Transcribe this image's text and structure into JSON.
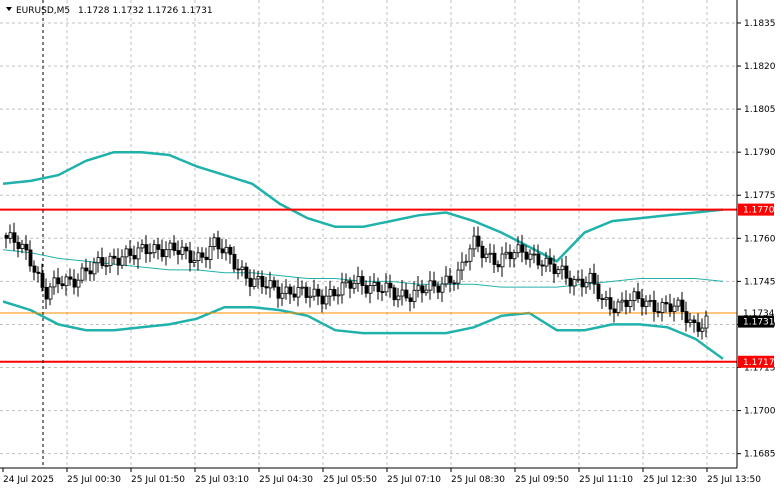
{
  "window": {
    "symbol_label": "EURUSD,M5",
    "ohlc_text": "1.1728 1.1732 1.1726 1.1731",
    "menu_icon": "triangle-down-icon"
  },
  "chart_data": {
    "type": "candlestick",
    "title": "EURUSD,M5",
    "ylim": [
      1.168,
      1.1843
    ],
    "y_ticks": [
      "1.1835",
      "1.1820",
      "1.1805",
      "1.1790",
      "1.1775",
      "1.1760",
      "1.1745",
      "1.1730",
      "1.1715",
      "1.1700",
      "1.1685"
    ],
    "x_ticks": [
      "24 Jul 2025",
      "25 Jul 00:30",
      "25 Jul 01:50",
      "25 Jul 03:10",
      "25 Jul 04:30",
      "25 Jul 05:50",
      "25 Jul 07:10",
      "25 Jul 08:30",
      "25 Jul 09:50",
      "25 Jul 11:10",
      "25 Jul 12:30",
      "25 Jul 13:50"
    ],
    "grid": true,
    "horizontal_levels": [
      {
        "label": "1.1770",
        "value": 1.177,
        "color": "#ff0000",
        "style": "level"
      },
      {
        "label": "1.1734",
        "value": 1.1734,
        "color": "#ff8c00",
        "style": "ask"
      },
      {
        "label": "1.1731",
        "value": 1.1731,
        "color": "#000000",
        "style": "bid"
      },
      {
        "label": "1.1717",
        "value": 1.1717,
        "color": "#ff0000",
        "style": "level"
      }
    ],
    "vertical_marker": {
      "category": "25 Jul 00:00",
      "color": "#000000"
    },
    "bollinger": {
      "color": "#20b2aa",
      "upper": [
        1.1779,
        1.178,
        1.1782,
        1.1787,
        1.179,
        1.179,
        1.1789,
        1.1785,
        1.1782,
        1.1779,
        1.1772,
        1.1767,
        1.1764,
        1.1764,
        1.1766,
        1.1768,
        1.1769,
        1.1766,
        1.1762,
        1.1757,
        1.1752,
        1.1762,
        1.1766,
        1.1767,
        1.1768,
        1.1769,
        1.177
      ],
      "middle": [
        1.1756,
        1.1755,
        1.1753,
        1.1752,
        1.1751,
        1.175,
        1.1749,
        1.1749,
        1.1748,
        1.1748,
        1.1747,
        1.1746,
        1.1746,
        1.1745,
        1.1745,
        1.1744,
        1.1744,
        1.1744,
        1.1743,
        1.1743,
        1.1743,
        1.1744,
        1.1745,
        1.1746,
        1.1746,
        1.1746,
        1.1745
      ],
      "lower": [
        1.1738,
        1.1735,
        1.173,
        1.1728,
        1.1728,
        1.1729,
        1.173,
        1.1732,
        1.1736,
        1.1736,
        1.1735,
        1.1733,
        1.1728,
        1.1727,
        1.1727,
        1.1727,
        1.1727,
        1.1729,
        1.1733,
        1.1734,
        1.1728,
        1.1728,
        1.173,
        1.173,
        1.1729,
        1.1725,
        1.1718
      ]
    },
    "price_path": [
      1.176,
      1.1757,
      1.1752,
      1.1741,
      1.1744,
      1.1745,
      1.1749,
      1.175,
      1.1752,
      1.1755,
      1.1754,
      1.1756,
      1.1757,
      1.1756,
      1.1753,
      1.1754,
      1.1758,
      1.1754,
      1.175,
      1.1745,
      1.1743,
      1.1742,
      1.1742,
      1.174,
      1.174,
      1.1741,
      1.1742,
      1.1745,
      1.1744,
      1.1742,
      1.174,
      1.1741,
      1.1742,
      1.1742,
      1.1746,
      1.1748,
      1.1758,
      1.1755,
      1.1752,
      1.1754,
      1.1756,
      1.1753,
      1.1749,
      1.1748,
      1.1745,
      1.1745,
      1.1738,
      1.1737,
      1.1738,
      1.1738,
      1.1737,
      1.1736,
      1.1735,
      1.173,
      1.1731
    ]
  }
}
